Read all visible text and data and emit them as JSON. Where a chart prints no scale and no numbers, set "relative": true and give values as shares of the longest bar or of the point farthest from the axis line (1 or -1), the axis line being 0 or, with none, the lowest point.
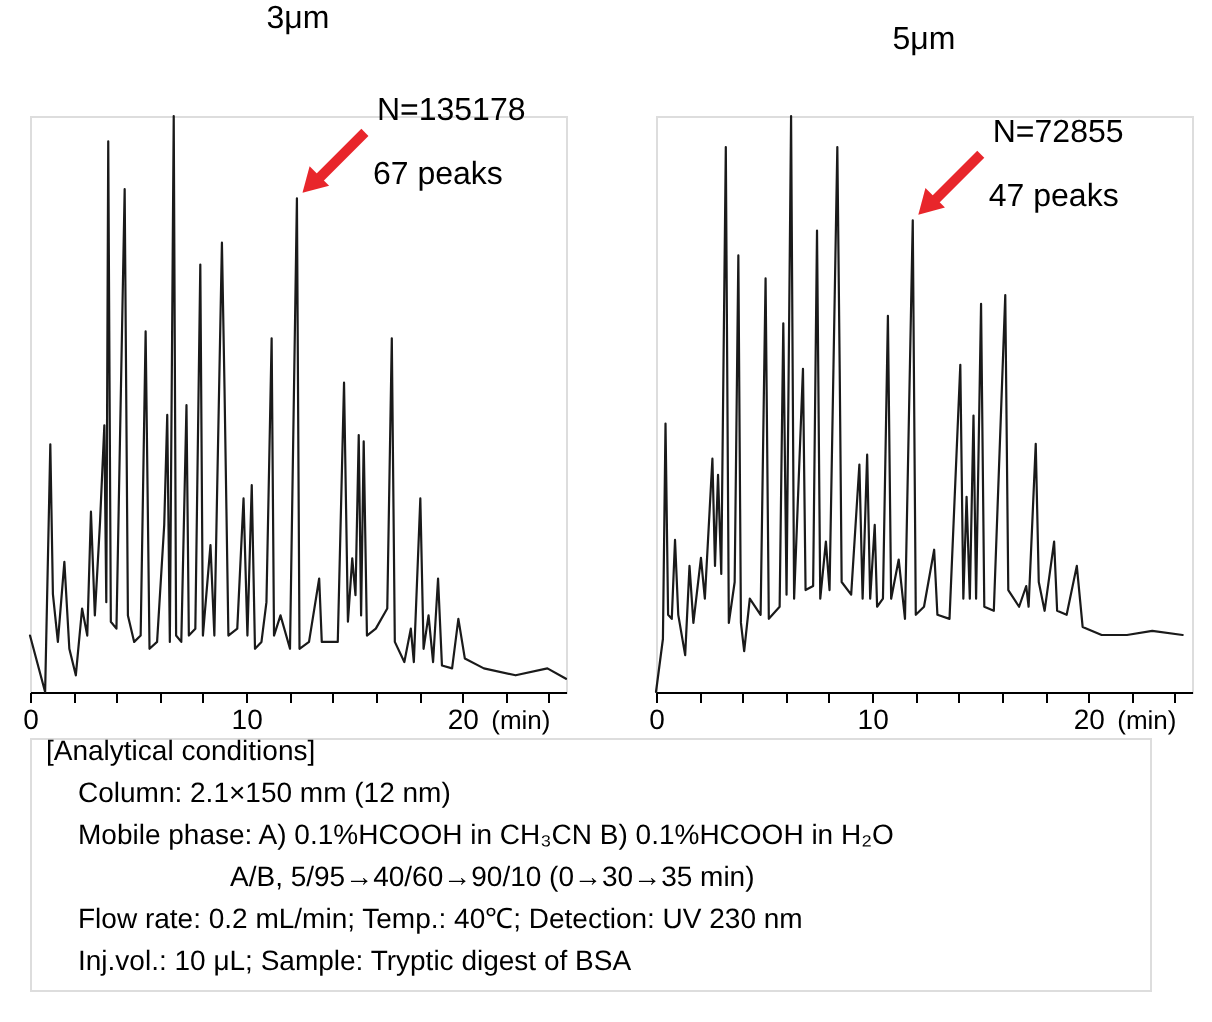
{
  "chart_data": [
    {
      "type": "line",
      "title": "3μm",
      "xlabel": "(min)",
      "relative": true,
      "xlim": [
        0,
        24.8
      ],
      "xticks": [
        0,
        {
          "value": 2,
          "label": null
        },
        {
          "value": 4,
          "label": null
        },
        {
          "value": 6,
          "label": null
        },
        {
          "value": 8,
          "label": null
        },
        10,
        {
          "value": 12,
          "label": null
        },
        {
          "value": 14,
          "label": null
        },
        {
          "value": 16,
          "label": null
        },
        {
          "value": 18,
          "label": null
        },
        20,
        {
          "value": 22,
          "label": null
        },
        {
          "value": 24,
          "label": null
        }
      ],
      "series": [
        {
          "color": "#1a1a1a",
          "x": [
            0,
            0.7,
            0.94,
            1.06,
            1.29,
            1.59,
            1.82,
            2.12,
            2.41,
            2.65,
            2.82,
            3.0,
            3.24,
            3.44,
            3.53,
            3.62,
            3.74,
            4.0,
            4.38,
            4.53,
            4.82,
            5.12,
            5.35,
            5.53,
            5.88,
            6.21,
            6.35,
            6.47,
            6.65,
            6.76,
            7.0,
            7.24,
            7.35,
            7.65,
            7.88,
            8.0,
            8.35,
            8.53,
            8.88,
            9.0,
            9.18,
            9.59,
            9.88,
            10.06,
            10.26,
            10.41,
            10.71,
            10.94,
            11.18,
            11.29,
            11.59,
            12.03,
            12.35,
            12.47,
            12.91,
            13.38,
            13.5,
            13.94,
            14.24,
            14.53,
            14.71,
            14.91,
            15.06,
            15.21,
            15.32,
            15.44,
            15.59,
            16.0,
            16.53,
            16.74,
            16.88,
            17.32,
            17.62,
            17.76,
            18.06,
            18.21,
            18.44,
            18.65,
            18.88,
            19.06,
            19.53,
            19.82,
            20.12,
            21.0,
            22.47,
            23.94,
            24.8
          ],
          "values": [
            0.098,
            0,
            0.43,
            0.17,
            0.087,
            0.226,
            0.075,
            0.029,
            0.145,
            0.098,
            0.313,
            0.133,
            0.295,
            0.463,
            0.156,
            0.956,
            0.122,
            0.11,
            0.873,
            0.133,
            0.087,
            0.098,
            0.626,
            0.075,
            0.087,
            0.29,
            0.481,
            0.087,
            1.0,
            0.098,
            0.087,
            0.498,
            0.098,
            0.11,
            0.742,
            0.098,
            0.255,
            0.098,
            0.78,
            0.527,
            0.098,
            0.11,
            0.336,
            0.098,
            0.359,
            0.075,
            0.087,
            0.156,
            0.614,
            0.098,
            0.133,
            0.075,
            0.857,
            0.075,
            0.087,
            0.197,
            0.087,
            0.087,
            0.087,
            0.537,
            0.122,
            0.232,
            0.168,
            0.446,
            0.133,
            0.435,
            0.098,
            0.11,
            0.145,
            0.614,
            0.087,
            0.052,
            0.11,
            0.052,
            0.336,
            0.075,
            0.133,
            0.052,
            0.197,
            0.046,
            0.041,
            0.127,
            0.058,
            0.041,
            0.029,
            0.041,
            0.023
          ]
        }
      ],
      "annotations": [
        "N=135178",
        {
          "text": "67 peaks",
          "x": 12.35,
          "y": 0.857
        }
      ]
    },
    {
      "type": "line",
      "title": "5μm",
      "xlabel": "(min)",
      "relative": true,
      "xlim": [
        0,
        24.8
      ],
      "xticks": [
        0,
        {
          "value": 2,
          "label": null
        },
        {
          "value": 4,
          "label": null
        },
        {
          "value": 6,
          "label": null
        },
        {
          "value": 8,
          "label": null
        },
        10,
        {
          "value": 12,
          "label": null
        },
        {
          "value": 14,
          "label": null
        },
        {
          "value": 16,
          "label": null
        },
        {
          "value": 18,
          "label": null
        },
        20,
        {
          "value": 22,
          "label": null
        },
        {
          "value": 24,
          "label": null
        }
      ],
      "series": [
        {
          "color": "#1a1a1a",
          "x": [
            0,
            0.32,
            0.44,
            0.56,
            0.73,
            0.88,
            1.03,
            1.35,
            1.55,
            1.73,
            2.08,
            2.26,
            2.61,
            2.73,
            2.87,
            3.02,
            3.23,
            3.37,
            3.64,
            3.81,
            3.93,
            4.08,
            4.34,
            4.84,
            5.07,
            5.22,
            5.72,
            5.89,
            6.04,
            6.25,
            6.39,
            6.8,
            6.92,
            7.27,
            7.45,
            7.6,
            7.86,
            8.03,
            8.39,
            8.5,
            8.59,
            9.03,
            9.41,
            9.56,
            9.77,
            9.91,
            10.12,
            10.23,
            10.5,
            10.73,
            10.88,
            11.23,
            11.52,
            11.88,
            12.02,
            12.4,
            12.87,
            13.02,
            13.58,
            14.08,
            14.22,
            14.37,
            14.52,
            14.69,
            14.81,
            15.04,
            15.19,
            15.63,
            16.16,
            16.3,
            16.8,
            17.13,
            17.24,
            17.57,
            17.71,
            17.98,
            18.42,
            18.56,
            19.0,
            19.47,
            19.74,
            20.62,
            21.79,
            22.96,
            24.37
          ],
          "values": [
            0,
            0.092,
            0.466,
            0.134,
            0.127,
            0.264,
            0.134,
            0.064,
            0.219,
            0.12,
            0.233,
            0.162,
            0.405,
            0.219,
            0.377,
            0.205,
            0.946,
            0.12,
            0.191,
            0.758,
            0.12,
            0.071,
            0.162,
            0.134,
            0.718,
            0.127,
            0.148,
            0.64,
            0.169,
            1.0,
            0.162,
            0.561,
            0.177,
            0.184,
            0.801,
            0.162,
            0.261,
            0.177,
            0.946,
            0.558,
            0.191,
            0.169,
            0.395,
            0.162,
            0.412,
            0.162,
            0.29,
            0.148,
            0.162,
            0.653,
            0.162,
            0.23,
            0.127,
            0.819,
            0.134,
            0.148,
            0.247,
            0.134,
            0.127,
            0.568,
            0.162,
            0.339,
            0.162,
            0.48,
            0.162,
            0.674,
            0.148,
            0.141,
            0.689,
            0.177,
            0.148,
            0.184,
            0.148,
            0.431,
            0.191,
            0.141,
            0.261,
            0.141,
            0.134,
            0.219,
            0.113,
            0.099,
            0.099,
            0.106,
            0.099
          ]
        }
      ],
      "annotations": [
        "N=72855",
        {
          "text": "47 peaks",
          "x": 11.88,
          "y": 0.819
        }
      ]
    },
    {
      "type": "other",
      "annotations": [
        "[Analytical conditions]",
        "Column: 2.1×150 mm (12 nm)",
        "Mobile phase: A) 0.1%HCOOH in CH₃CN  B) 0.1%HCOOH in H₂O",
        "A/B, 5/95→40/60→90/10 (0→30→35 min)",
        "Flow rate: 0.2 mL/min;  Temp.: 40℃;  Detection: UV 230 nm",
        "Inj.vol.: 10 μL;  Sample: Tryptic digest of BSA"
      ]
    }
  ]
}
